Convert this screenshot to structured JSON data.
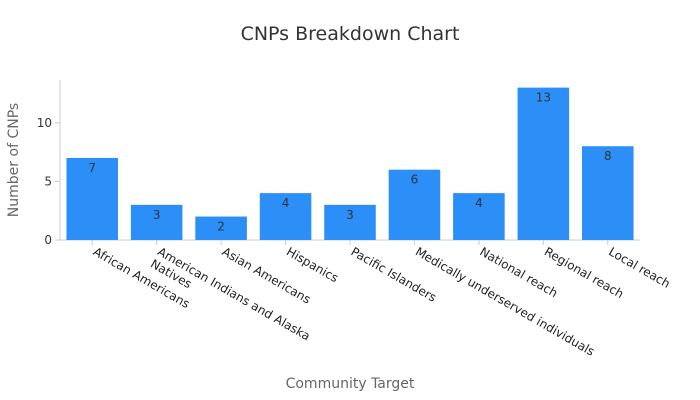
{
  "chart_data": {
    "type": "bar",
    "title": "CNPs Breakdown Chart",
    "xlabel": "Community Target",
    "ylabel": "Number of CNPs",
    "categories": [
      "African Americans",
      "American Indians and Alaska Natives",
      "Asian Americans",
      "Hispanics",
      "Pacific Islanders",
      "Medically underserved individuals",
      "National reach",
      "Regional reach",
      "Local reach"
    ],
    "category_lines": [
      [
        "African Americans"
      ],
      [
        "American Indians and Alaska",
        "Natives"
      ],
      [
        "Asian Americans"
      ],
      [
        "Hispanics"
      ],
      [
        "Pacific Islanders"
      ],
      [
        "Medically underserved individuals"
      ],
      [
        "National reach"
      ],
      [
        "Regional reach"
      ],
      [
        "Local reach"
      ]
    ],
    "values": [
      7,
      3,
      2,
      4,
      3,
      6,
      4,
      13,
      8
    ],
    "ylim": [
      0,
      13.65
    ],
    "yticks": [
      0,
      5,
      10
    ],
    "grid": false,
    "bar_color": "#2b8ff7",
    "axis_color": "#cccccc"
  }
}
